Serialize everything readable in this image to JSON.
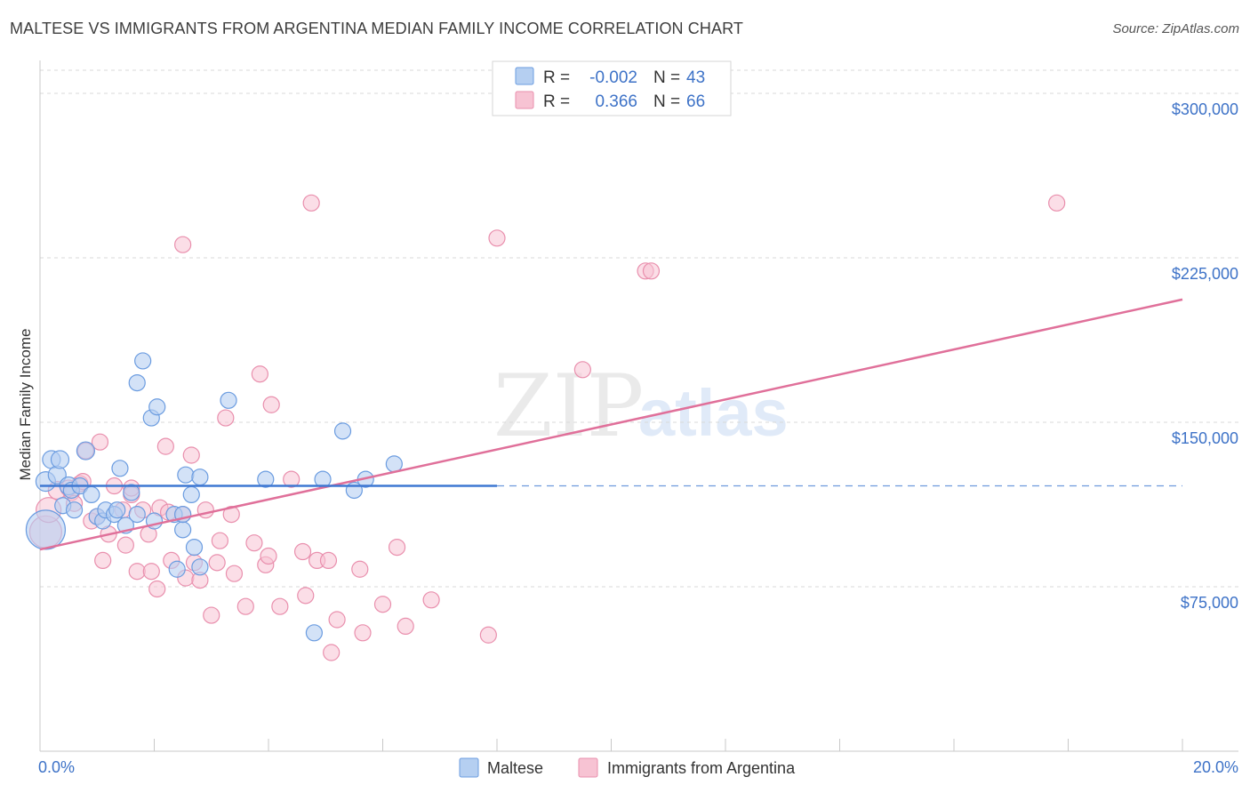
{
  "title": "MALTESE VS IMMIGRANTS FROM ARGENTINA MEDIAN FAMILY INCOME CORRELATION CHART",
  "source": "Source: ZipAtlas.com",
  "watermark": {
    "zip": "ZIP",
    "atlas": "atlas"
  },
  "legend": {
    "rows": [
      {
        "r_label": "R =",
        "r_value": "-0.002",
        "n_label": "N =",
        "n_value": "43"
      },
      {
        "r_label": "R =",
        "r_value": "0.366",
        "n_label": "N =",
        "n_value": "66"
      }
    ]
  },
  "bottom_legend": [
    "Maltese",
    "Immigrants from Argentina"
  ],
  "colors": {
    "maltese_fill": "#b5cff1",
    "maltese_stroke": "#6b9ce0",
    "maltese_line": "#3f78d2",
    "argentina_fill": "#f7c3d3",
    "argentina_stroke": "#e98fad",
    "argentina_line": "#e0709a",
    "grid": "#d9d9d9",
    "axis": "#c8c8c8"
  },
  "chart_data": {
    "type": "scatter",
    "title": "MALTESE VS IMMIGRANTS FROM ARGENTINA MEDIAN FAMILY INCOME CORRELATION CHART",
    "xlabel": "",
    "ylabel": "Median Family Income",
    "xlim": [
      0,
      20
    ],
    "ylim": [
      0,
      315000
    ],
    "x_tick_labels": [
      "0.0%",
      "20.0%"
    ],
    "y_ticks": [
      75000,
      150000,
      225000,
      300000
    ],
    "y_tick_labels": [
      "$75,000",
      "$150,000",
      "$225,000",
      "$300,000"
    ],
    "series": [
      {
        "name": "Maltese",
        "r": -0.002,
        "n": 43,
        "trend": {
          "x": [
            0,
            8
          ],
          "y": [
            121000,
            121000
          ],
          "dashed_to": 20
        },
        "points": [
          [
            0.1,
            101000,
            22
          ],
          [
            0.1,
            123000,
            11
          ],
          [
            0.2,
            133000,
            10
          ],
          [
            0.3,
            126000,
            10
          ],
          [
            0.35,
            133000,
            10
          ],
          [
            0.4,
            112000,
            9
          ],
          [
            0.5,
            121000,
            10
          ],
          [
            0.55,
            119000,
            9
          ],
          [
            0.6,
            110000,
            9
          ],
          [
            0.7,
            121000,
            9
          ],
          [
            0.8,
            137000,
            10
          ],
          [
            0.9,
            117000,
            9
          ],
          [
            1.0,
            107000,
            9
          ],
          [
            1.1,
            105000,
            9
          ],
          [
            1.15,
            110000,
            9
          ],
          [
            1.3,
            108000,
            9
          ],
          [
            1.35,
            110000,
            9
          ],
          [
            1.4,
            129000,
            9
          ],
          [
            1.5,
            103000,
            9
          ],
          [
            1.6,
            118000,
            9
          ],
          [
            1.7,
            108000,
            9
          ],
          [
            1.7,
            168000,
            9
          ],
          [
            1.8,
            178000,
            9
          ],
          [
            1.95,
            152000,
            9
          ],
          [
            2.0,
            105000,
            9
          ],
          [
            2.05,
            157000,
            9
          ],
          [
            2.35,
            108000,
            9
          ],
          [
            2.4,
            83000,
            9
          ],
          [
            2.5,
            101000,
            9
          ],
          [
            2.5,
            108000,
            9
          ],
          [
            2.55,
            126000,
            9
          ],
          [
            2.65,
            117000,
            9
          ],
          [
            2.7,
            93000,
            9
          ],
          [
            2.8,
            84000,
            9
          ],
          [
            2.8,
            125000,
            9
          ],
          [
            3.3,
            160000,
            9
          ],
          [
            3.95,
            124000,
            9
          ],
          [
            4.95,
            124000,
            9
          ],
          [
            4.8,
            54000,
            9
          ],
          [
            5.3,
            146000,
            9
          ],
          [
            5.5,
            119000,
            9
          ],
          [
            5.7,
            124000,
            9
          ],
          [
            6.2,
            131000,
            9
          ]
        ]
      },
      {
        "name": "Immigrants from Argentina",
        "r": 0.366,
        "n": 66,
        "trend": {
          "x": [
            0,
            20
          ],
          "y": [
            92000,
            206000
          ]
        },
        "points": [
          [
            0.1,
            100000,
            18
          ],
          [
            0.15,
            110000,
            14
          ],
          [
            0.3,
            119000,
            10
          ],
          [
            0.5,
            120000,
            9
          ],
          [
            0.55,
            118000,
            9
          ],
          [
            0.6,
            113000,
            9
          ],
          [
            0.7,
            122000,
            9
          ],
          [
            0.75,
            123000,
            9
          ],
          [
            0.8,
            137000,
            9
          ],
          [
            0.9,
            105000,
            9
          ],
          [
            1.0,
            107000,
            9
          ],
          [
            1.05,
            141000,
            9
          ],
          [
            1.1,
            87000,
            9
          ],
          [
            1.2,
            99000,
            9
          ],
          [
            1.3,
            121000,
            9
          ],
          [
            1.45,
            110000,
            9
          ],
          [
            1.5,
            94000,
            9
          ],
          [
            1.6,
            117000,
            9
          ],
          [
            1.6,
            120000,
            9
          ],
          [
            1.7,
            82000,
            9
          ],
          [
            1.8,
            110000,
            9
          ],
          [
            1.9,
            99000,
            9
          ],
          [
            1.95,
            82000,
            9
          ],
          [
            2.05,
            74000,
            9
          ],
          [
            2.1,
            111000,
            9
          ],
          [
            2.2,
            139000,
            9
          ],
          [
            2.25,
            109000,
            9
          ],
          [
            2.3,
            87000,
            9
          ],
          [
            2.5,
            108000,
            9
          ],
          [
            2.5,
            231000,
            9
          ],
          [
            2.55,
            79000,
            9
          ],
          [
            2.65,
            135000,
            9
          ],
          [
            2.7,
            86000,
            9
          ],
          [
            2.8,
            78000,
            9
          ],
          [
            2.9,
            110000,
            9
          ],
          [
            3.0,
            62000,
            9
          ],
          [
            3.1,
            86000,
            9
          ],
          [
            3.15,
            96000,
            9
          ],
          [
            3.25,
            152000,
            9
          ],
          [
            3.35,
            108000,
            9
          ],
          [
            3.4,
            81000,
            9
          ],
          [
            3.6,
            66000,
            9
          ],
          [
            3.75,
            95000,
            9
          ],
          [
            3.85,
            172000,
            9
          ],
          [
            3.95,
            85000,
            9
          ],
          [
            4.0,
            89000,
            9
          ],
          [
            4.05,
            158000,
            9
          ],
          [
            4.2,
            66000,
            9
          ],
          [
            4.4,
            124000,
            9
          ],
          [
            4.6,
            91000,
            9
          ],
          [
            4.65,
            71000,
            9
          ],
          [
            4.75,
            250000,
            9
          ],
          [
            4.85,
            87000,
            9
          ],
          [
            5.05,
            87000,
            9
          ],
          [
            5.1,
            45000,
            9
          ],
          [
            5.2,
            60000,
            9
          ],
          [
            5.6,
            83000,
            9
          ],
          [
            5.65,
            54000,
            9
          ],
          [
            6.0,
            67000,
            9
          ],
          [
            6.25,
            93000,
            9
          ],
          [
            6.4,
            57000,
            9
          ],
          [
            6.85,
            69000,
            9
          ],
          [
            7.85,
            53000,
            9
          ],
          [
            8.0,
            234000,
            9
          ],
          [
            9.5,
            174000,
            9
          ],
          [
            10.6,
            219000,
            9
          ],
          [
            10.7,
            219000,
            9
          ],
          [
            17.8,
            250000,
            9
          ]
        ]
      }
    ]
  }
}
